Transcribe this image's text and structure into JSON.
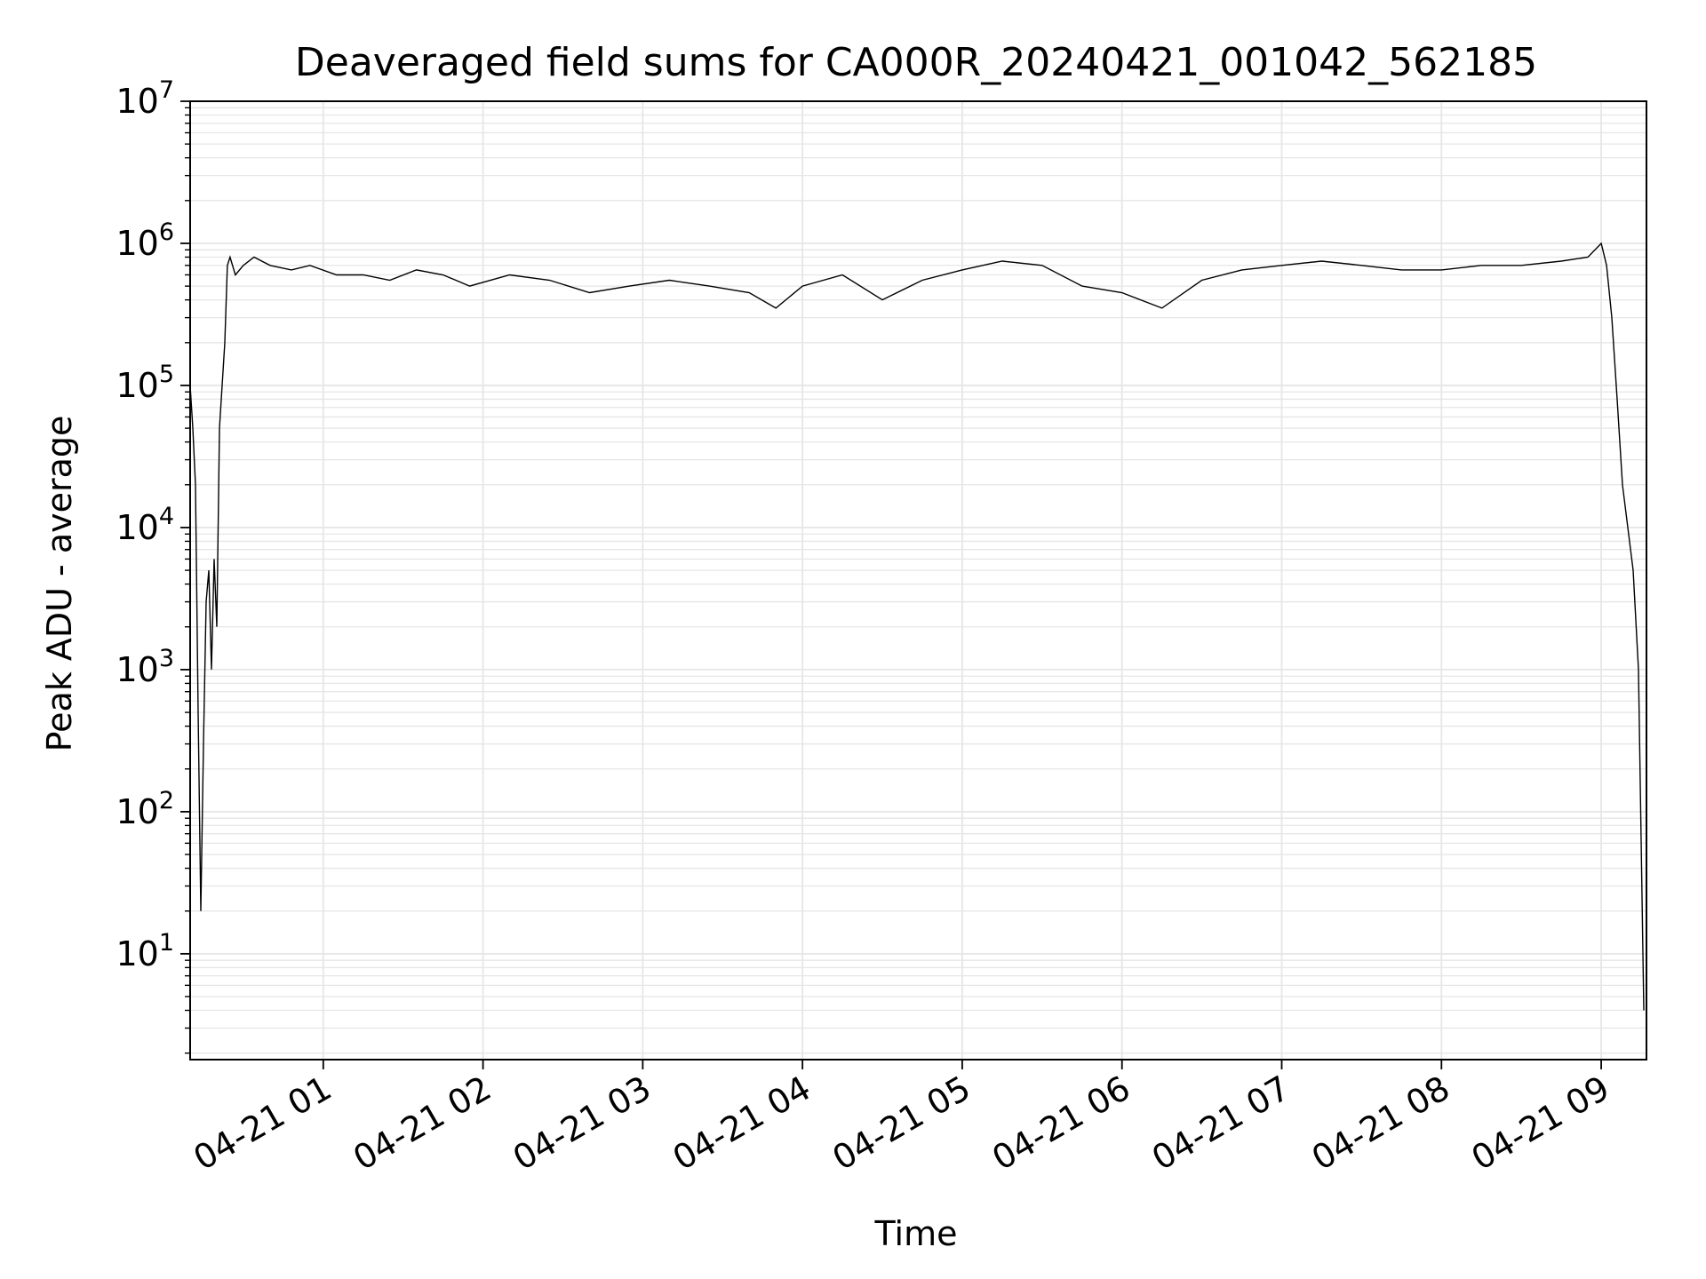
{
  "chart_data": {
    "type": "line",
    "title": "Deaveraged field sums for CA000R_20240421_001042_562185",
    "xlabel": "Time",
    "ylabel": "Peak ADU - average",
    "x_axis_type": "datetime",
    "y_scale": "log",
    "xlim": [
      "2024-04-21 00:10",
      "2024-04-21 09:17"
    ],
    "ylim": [
      1.8,
      10000000
    ],
    "x_tick_labels": [
      "04-21 01",
      "04-21 02",
      "04-21 03",
      "04-21 04",
      "04-21 05",
      "04-21 06",
      "04-21 07",
      "04-21 08",
      "04-21 09"
    ],
    "x_tick_values": [
      "2024-04-21 01:00",
      "2024-04-21 02:00",
      "2024-04-21 03:00",
      "2024-04-21 04:00",
      "2024-04-21 05:00",
      "2024-04-21 06:00",
      "2024-04-21 07:00",
      "2024-04-21 08:00",
      "2024-04-21 09:00"
    ],
    "y_tick_values": [
      10,
      100,
      1000,
      10000,
      100000,
      1000000,
      10000000
    ],
    "y_tick_labels": [
      {
        "base": "10",
        "exp": "1"
      },
      {
        "base": "10",
        "exp": "2"
      },
      {
        "base": "10",
        "exp": "3"
      },
      {
        "base": "10",
        "exp": "4"
      },
      {
        "base": "10",
        "exp": "5"
      },
      {
        "base": "10",
        "exp": "6"
      },
      {
        "base": "10",
        "exp": "7"
      }
    ],
    "grid": "major and minor",
    "line_color": "#000000",
    "grid_color": "#e6e6e6",
    "series": [
      {
        "x": [
          "2024-04-21 00:10",
          "2024-04-21 00:11",
          "2024-04-21 00:12",
          "2024-04-21 00:13",
          "2024-04-21 00:14",
          "2024-04-21 00:15",
          "2024-04-21 00:16",
          "2024-04-21 00:17",
          "2024-04-21 00:18",
          "2024-04-21 00:19",
          "2024-04-21 00:20",
          "2024-04-21 00:21",
          "2024-04-21 00:22",
          "2024-04-21 00:23",
          "2024-04-21 00:24",
          "2024-04-21 00:25",
          "2024-04-21 00:27",
          "2024-04-21 00:30",
          "2024-04-21 00:34",
          "2024-04-21 00:40",
          "2024-04-21 00:48",
          "2024-04-21 00:55",
          "2024-04-21 01:05",
          "2024-04-21 01:15",
          "2024-04-21 01:25",
          "2024-04-21 01:35",
          "2024-04-21 01:45",
          "2024-04-21 01:55",
          "2024-04-21 02:10",
          "2024-04-21 02:25",
          "2024-04-21 02:40",
          "2024-04-21 02:55",
          "2024-04-21 03:10",
          "2024-04-21 03:25",
          "2024-04-21 03:40",
          "2024-04-21 03:50",
          "2024-04-21 04:00",
          "2024-04-21 04:15",
          "2024-04-21 04:30",
          "2024-04-21 04:45",
          "2024-04-21 05:00",
          "2024-04-21 05:15",
          "2024-04-21 05:30",
          "2024-04-21 05:45",
          "2024-04-21 06:00",
          "2024-04-21 06:15",
          "2024-04-21 06:30",
          "2024-04-21 06:45",
          "2024-04-21 07:00",
          "2024-04-21 07:15",
          "2024-04-21 07:30",
          "2024-04-21 07:45",
          "2024-04-21 08:00",
          "2024-04-21 08:15",
          "2024-04-21 08:30",
          "2024-04-21 08:45",
          "2024-04-21 08:55",
          "2024-04-21 09:00",
          "2024-04-21 09:02",
          "2024-04-21 09:04",
          "2024-04-21 09:06",
          "2024-04-21 09:08",
          "2024-04-21 09:10",
          "2024-04-21 09:12",
          "2024-04-21 09:14",
          "2024-04-21 09:16"
        ],
        "values": [
          100000,
          50000,
          20000,
          500,
          20,
          300,
          3000,
          5000,
          1000,
          6000,
          2000,
          50000,
          100000,
          200000,
          700000,
          800000,
          600000,
          700000,
          800000,
          700000,
          650000,
          700000,
          600000,
          600000,
          550000,
          650000,
          600000,
          500000,
          600000,
          550000,
          450000,
          500000,
          550000,
          500000,
          450000,
          350000,
          500000,
          600000,
          400000,
          550000,
          650000,
          750000,
          700000,
          500000,
          450000,
          350000,
          550000,
          650000,
          700000,
          750000,
          700000,
          650000,
          650000,
          700000,
          700000,
          750000,
          800000,
          1000000,
          700000,
          300000,
          80000,
          20000,
          10000,
          5000,
          1000,
          4
        ]
      }
    ]
  }
}
